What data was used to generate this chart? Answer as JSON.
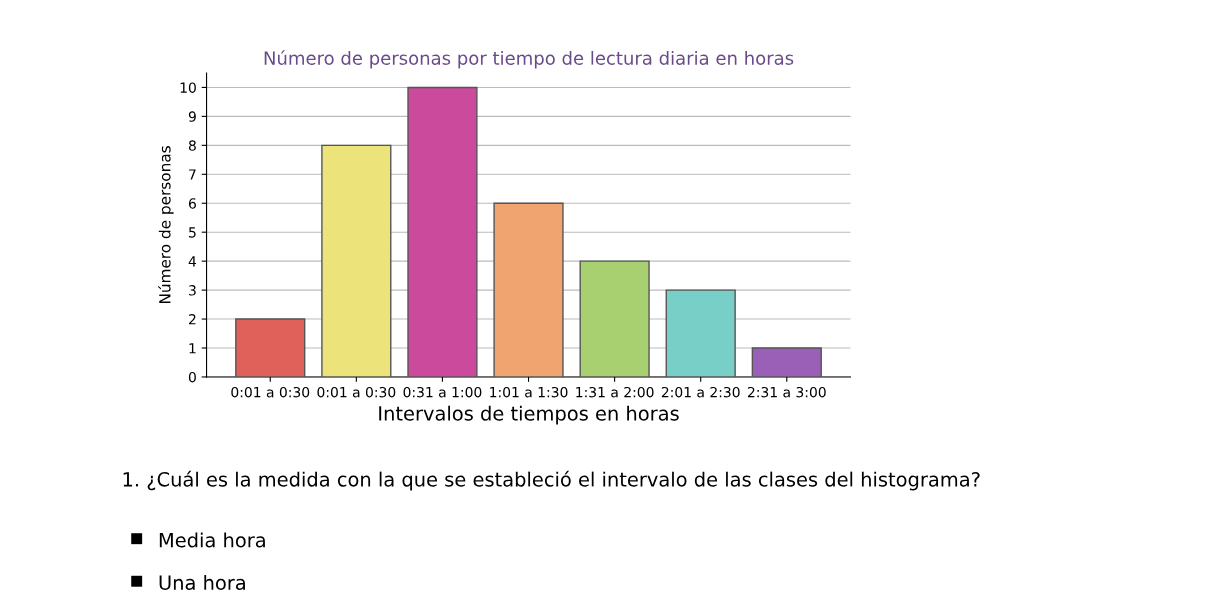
{
  "chart_data": {
    "type": "bar",
    "title": "Número de personas por tiempo de lectura diaria en horas",
    "xlabel": "Intervalos de tiempos en horas",
    "ylabel": "Número de personas",
    "categories": [
      "0:01 a 0:30",
      "0:01 a 0:30",
      "0:31 a 1:00",
      "1:01 a 1:30",
      "1:31 a 2:00",
      "2:01 a 2:30",
      "2:31 a 3:00"
    ],
    "values": [
      2,
      8,
      10,
      6,
      4,
      3,
      1
    ],
    "colors": [
      "#e0605a",
      "#ece37a",
      "#cc4a9c",
      "#f0a470",
      "#a8d070",
      "#78cfc8",
      "#9a60b8"
    ],
    "ylim": [
      0,
      10.5
    ],
    "yticks": [
      0,
      1,
      2,
      3,
      4,
      5,
      6,
      7,
      8,
      9,
      10
    ],
    "grid": "y",
    "annotations": [
      "1. ¿Cuál es la medida con la que se estableció el intervalo de las clases del histograma?",
      "Media hora",
      "Una hora"
    ]
  }
}
